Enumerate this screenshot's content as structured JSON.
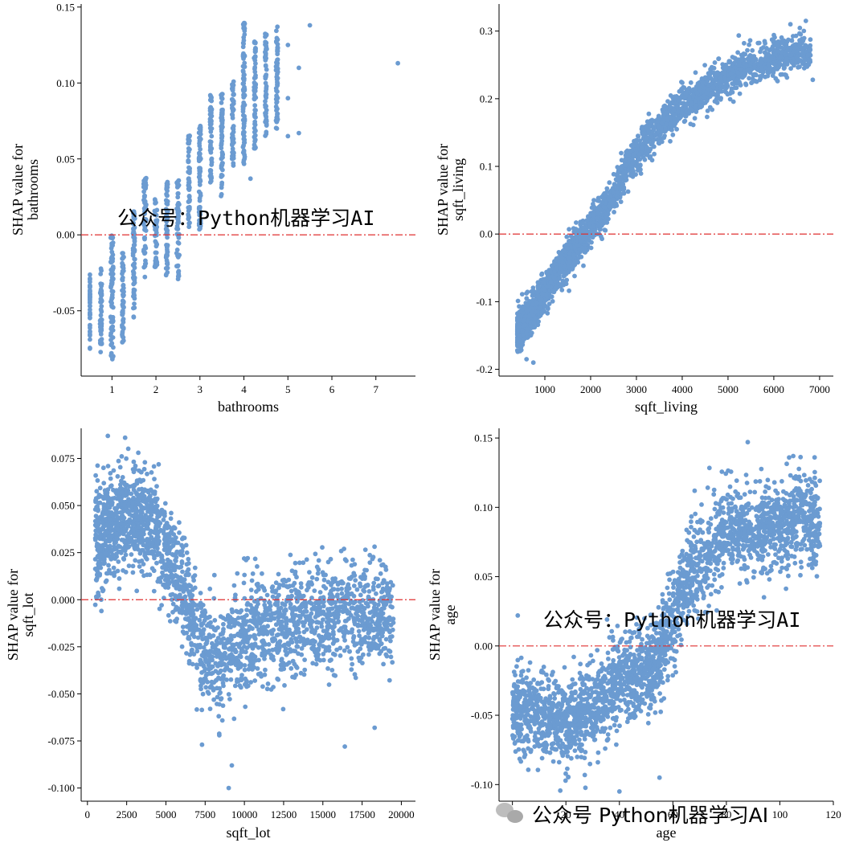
{
  "point_color": "#6b9bd1",
  "zero_line_color": "#e03131",
  "watermark_color": "#c9c9c9",
  "watermarks": {
    "top": "公众号：Python机器学习AI",
    "middle": "公众号：Python机器学习AI",
    "bottom": "公众号 Python机器学习AI"
  },
  "chart_data": [
    {
      "type": "scatter",
      "feature": "bathrooms",
      "xlabel": "bathrooms",
      "ylabel_lines": [
        "SHAP value for",
        "bathrooms"
      ],
      "xlim": [
        0.3,
        7.9
      ],
      "ylim": [
        -0.093,
        0.152
      ],
      "xticks": [
        1,
        2,
        3,
        4,
        5,
        6,
        7
      ],
      "yticks": [
        -0.05,
        0.0,
        0.05,
        0.1,
        0.15
      ],
      "ytick_labels": [
        "-0.05",
        "0.00",
        "0.05",
        "0.10",
        "0.15"
      ],
      "reference_line_y": 0.0,
      "clusters": [
        {
          "x": 0.5,
          "spread": 0,
          "y": [
            -0.076,
            -0.025
          ]
        },
        {
          "x": 0.75,
          "spread": 0.02,
          "y": [
            -0.078,
            -0.022
          ]
        },
        {
          "x": 1.0,
          "spread": 0.03,
          "y": [
            -0.085,
            0.0
          ]
        },
        {
          "x": 1.25,
          "spread": 0.02,
          "y": [
            -0.072,
            -0.01
          ]
        },
        {
          "x": 1.5,
          "spread": 0.02,
          "y": [
            -0.055,
            0.018
          ]
        },
        {
          "x": 1.75,
          "spread": 0.03,
          "y": [
            -0.028,
            0.038
          ]
        },
        {
          "x": 2.0,
          "spread": 0.03,
          "y": [
            -0.022,
            0.028
          ]
        },
        {
          "x": 2.25,
          "spread": 0.02,
          "y": [
            -0.028,
            0.035
          ]
        },
        {
          "x": 2.5,
          "spread": 0.03,
          "y": [
            -0.03,
            0.038
          ]
        },
        {
          "x": 2.75,
          "spread": 0.02,
          "y": [
            0.005,
            0.067
          ]
        },
        {
          "x": 3.0,
          "spread": 0.02,
          "y": [
            0.002,
            0.075
          ]
        },
        {
          "x": 3.25,
          "spread": 0.02,
          "y": [
            0.028,
            0.092
          ]
        },
        {
          "x": 3.5,
          "spread": 0.02,
          "y": [
            0.025,
            0.093
          ]
        },
        {
          "x": 3.75,
          "spread": 0.02,
          "y": [
            0.042,
            0.102
          ]
        },
        {
          "x": 4.0,
          "spread": 0.02,
          "y": [
            0.045,
            0.142
          ]
        },
        {
          "x": 4.25,
          "spread": 0.02,
          "y": [
            0.055,
            0.128
          ]
        },
        {
          "x": 4.5,
          "spread": 0.02,
          "y": [
            0.065,
            0.133
          ]
        },
        {
          "x": 4.75,
          "spread": 0.02,
          "y": [
            0.07,
            0.138
          ]
        }
      ],
      "points": [
        [
          4.15,
          0.037
        ],
        [
          5.0,
          0.065
        ],
        [
          5.0,
          0.09
        ],
        [
          5.0,
          0.125
        ],
        [
          5.25,
          0.11
        ],
        [
          5.25,
          0.067
        ],
        [
          5.5,
          0.138
        ],
        [
          7.5,
          0.113
        ]
      ]
    },
    {
      "type": "scatter",
      "feature": "sqft_living",
      "xlabel": "sqft_living",
      "ylabel_lines": [
        "SHAP value for",
        "sqft_living"
      ],
      "xlim": [
        0,
        7300
      ],
      "ylim": [
        -0.21,
        0.34
      ],
      "xticks": [
        1000,
        2000,
        3000,
        4000,
        5000,
        6000,
        7000
      ],
      "yticks": [
        -0.2,
        -0.1,
        0.0,
        0.1,
        0.2,
        0.3
      ],
      "ytick_labels": [
        "-0.2",
        "-0.1",
        "0.0",
        "0.1",
        "0.2",
        "0.3"
      ],
      "reference_line_y": 0.0,
      "trend_x": [
        400,
        800,
        1200,
        1600,
        2000,
        2400,
        2800,
        3200,
        3600,
        4000,
        4400,
        4800,
        5200,
        5600,
        6000,
        6400,
        6800
      ],
      "trend_y": [
        -0.145,
        -0.11,
        -0.065,
        -0.025,
        0.01,
        0.045,
        0.1,
        0.135,
        0.165,
        0.19,
        0.21,
        0.225,
        0.24,
        0.25,
        0.26,
        0.265,
        0.27
      ],
      "points": [
        [
          6700,
          0.315
        ],
        [
          6850,
          0.228
        ],
        [
          6300,
          0.272
        ],
        [
          5800,
          0.285
        ],
        [
          5350,
          0.282
        ],
        [
          6100,
          0.27
        ],
        [
          5950,
          0.26
        ],
        [
          600,
          -0.185
        ],
        [
          750,
          -0.19
        ],
        [
          5100,
          0.23
        ]
      ]
    },
    {
      "type": "scatter",
      "feature": "sqft_lot",
      "xlabel": "sqft_lot",
      "ylabel_lines": [
        "SHAP value for",
        "sqft_lot"
      ],
      "xlim": [
        -400,
        20900
      ],
      "ylim": [
        -0.107,
        0.091
      ],
      "xticks": [
        0,
        2500,
        5000,
        7500,
        10000,
        12500,
        15000,
        17500,
        20000
      ],
      "yticks": [
        -0.1,
        -0.075,
        -0.05,
        -0.025,
        0.0,
        0.025,
        0.05,
        0.075
      ],
      "ytick_labels": [
        "-0.100",
        "-0.075",
        "-0.050",
        "-0.025",
        "0.000",
        "0.025",
        "0.050",
        "0.075"
      ],
      "reference_line_y": 0.0,
      "trend_x": [
        500,
        1500,
        2500,
        3500,
        4500,
        5500,
        6500,
        7500,
        8500,
        9500,
        10500,
        11500,
        12500,
        13500,
        14500,
        15500,
        16500,
        17500,
        18500,
        19500
      ],
      "trend_y": [
        0.032,
        0.042,
        0.043,
        0.045,
        0.035,
        0.015,
        -0.005,
        -0.03,
        -0.032,
        -0.025,
        -0.018,
        -0.015,
        -0.012,
        -0.012,
        -0.01,
        -0.012,
        -0.008,
        -0.008,
        -0.01,
        -0.008
      ],
      "points": [
        [
          1300,
          0.087
        ],
        [
          2400,
          0.086
        ],
        [
          9000,
          -0.1
        ],
        [
          9200,
          -0.088
        ],
        [
          16400,
          -0.078
        ],
        [
          18300,
          -0.068
        ],
        [
          8400,
          -0.072
        ],
        [
          7300,
          -0.077
        ]
      ]
    },
    {
      "type": "scatter",
      "feature": "age",
      "xlabel": "age",
      "ylabel_lines": [
        "SHAP value for",
        "age"
      ],
      "xlim": [
        -5,
        120
      ],
      "ylim": [
        -0.112,
        0.157
      ],
      "xticks": [
        0,
        20,
        40,
        60,
        80,
        100,
        120
      ],
      "yticks": [
        -0.1,
        -0.05,
        0.0,
        0.05,
        0.1,
        0.15
      ],
      "ytick_labels": [
        "-0.10",
        "-0.05",
        "0.00",
        "0.05",
        "0.10",
        "0.15"
      ],
      "reference_line_y": 0.0,
      "trend_x": [
        0,
        10,
        20,
        30,
        40,
        50,
        55,
        60,
        65,
        70,
        75,
        80,
        90,
        100,
        110,
        115
      ],
      "trend_y": [
        -0.045,
        -0.05,
        -0.055,
        -0.045,
        -0.025,
        -0.02,
        -0.005,
        0.02,
        0.045,
        0.06,
        0.07,
        0.085,
        0.08,
        0.09,
        0.095,
        0.085
      ],
      "points": [
        [
          40,
          -0.105
        ],
        [
          88,
          0.147
        ],
        [
          55,
          -0.095
        ],
        [
          2,
          0.022
        ],
        [
          105,
          0.137
        ],
        [
          113,
          0.136
        ]
      ]
    }
  ]
}
